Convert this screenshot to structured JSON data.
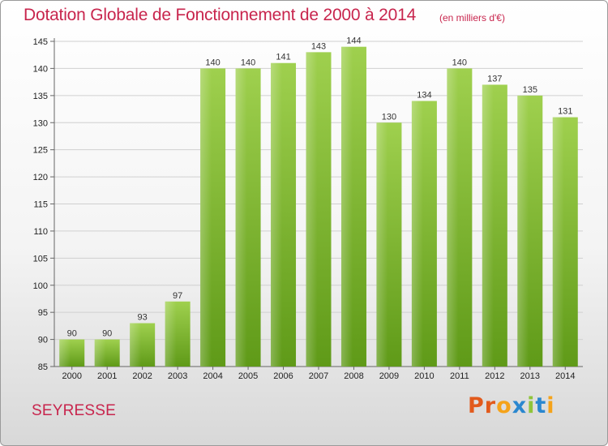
{
  "header": {
    "title": "Dotation Globale de Fonctionnement de 2000 à 2014",
    "unit": "(en milliers d'€)"
  },
  "footer": {
    "place": "SEYRESSE",
    "logo": "Proxiti"
  },
  "colors": {
    "title": "#c8254d",
    "bar_top": "#9fd04e",
    "bar_bottom": "#5f9a18",
    "grid": "#d0d0d0",
    "logo_letters": [
      "#e25a1c",
      "#e25a1c",
      "#f5a31a",
      "#2a87cf",
      "#8fc43a",
      "#2a87cf",
      "#f5a31a"
    ]
  },
  "chart_data": {
    "type": "bar",
    "title": "Dotation Globale de Fonctionnement de 2000 à 2014",
    "xlabel": "",
    "ylabel": "",
    "ylim": [
      85,
      145
    ],
    "yticks": [
      85,
      90,
      95,
      100,
      105,
      110,
      115,
      120,
      125,
      130,
      135,
      140,
      145
    ],
    "grid": true,
    "categories": [
      "2000",
      "2001",
      "2002",
      "2003",
      "2004",
      "2005",
      "2006",
      "2007",
      "2008",
      "2009",
      "2010",
      "2011",
      "2012",
      "2013",
      "2014"
    ],
    "values": [
      90,
      90,
      93,
      97,
      140,
      140,
      141,
      143,
      144,
      130,
      134,
      140,
      137,
      135,
      131
    ]
  }
}
